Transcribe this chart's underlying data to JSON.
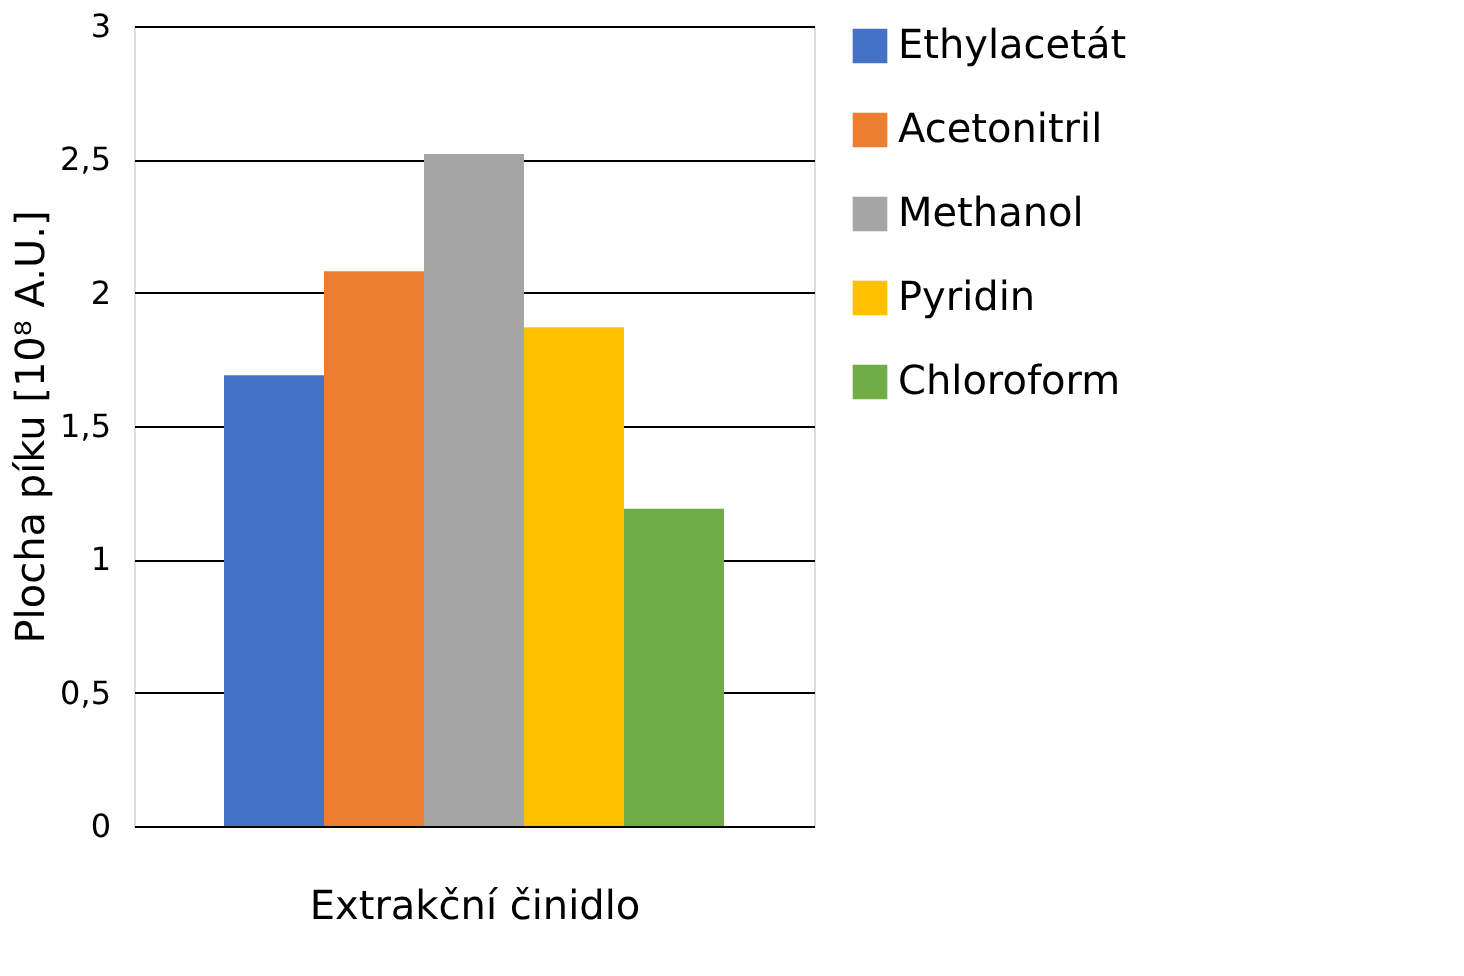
{
  "chart_data": {
    "type": "bar",
    "xlabel": "Extrakční činidlo",
    "ylabel": "Plocha píku [10⁸ A.U.]",
    "categories": [
      null
    ],
    "series": [
      {
        "name": "Ethylacetát",
        "color": "#4472c4",
        "values": [
          1.69
        ]
      },
      {
        "name": "Acetonitril",
        "color": "#ed7d31",
        "values": [
          2.08
        ]
      },
      {
        "name": "Methanol",
        "color": "#a5a5a5",
        "values": [
          2.52
        ]
      },
      {
        "name": "Pyridin",
        "color": "#ffc000",
        "values": [
          1.87
        ]
      },
      {
        "name": "Chloroform",
        "color": "#70ad47",
        "values": [
          1.19
        ]
      }
    ],
    "ylim": [
      0,
      3
    ],
    "yticks": [
      0,
      {
        "value": 0.5,
        "label": "0,5"
      },
      1,
      {
        "value": 1.5,
        "label": "1,5"
      },
      2,
      {
        "value": 2.5,
        "label": "2,5"
      },
      3
    ],
    "grid": "y",
    "legend": "right"
  }
}
